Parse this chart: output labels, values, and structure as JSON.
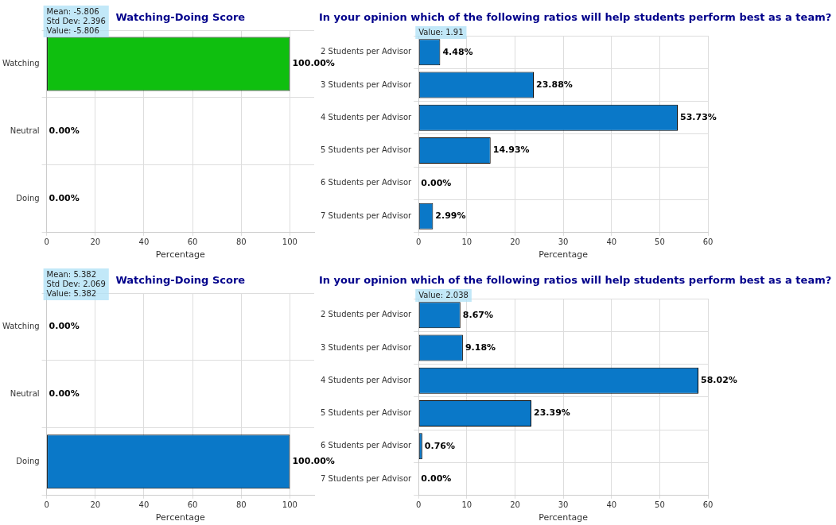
{
  "chart_data": [
    {
      "type": "bar",
      "orientation": "horizontal",
      "title": "Watching-Doing Score",
      "xlabel": "Percentage",
      "categories": [
        "Watching",
        "Neutral",
        "Doing"
      ],
      "values": [
        100,
        0,
        0
      ],
      "color": "#0fbf0f",
      "value_labels": [
        "100.00%",
        "0.00%",
        "0.00%"
      ],
      "xlim": [
        0,
        110
      ],
      "xticks": [
        0,
        20,
        40,
        60,
        80,
        100
      ],
      "grid": true,
      "annotations": [
        "Mean: -5.806\nStd Dev: 2.396\nValue: -5.806"
      ]
    },
    {
      "type": "bar",
      "orientation": "horizontal",
      "title": "In your opinion which of the following ratios will help students perform best as a team?",
      "xlabel": "Percentage",
      "categories": [
        "2 Students per Advisor",
        "3 Students per Advisor",
        "4 Students per Advisor",
        "5 Students per Advisor",
        "6 Students per Advisor",
        "7 Students per Advisor"
      ],
      "values": [
        4.48,
        23.88,
        53.73,
        14.93,
        0,
        2.99
      ],
      "color": "#0a78c8",
      "value_labels": [
        "4.48%",
        "23.88%",
        "53.73%",
        "14.93%",
        "0.00%",
        "2.99%"
      ],
      "xlim": [
        0,
        60
      ],
      "xticks": [
        0,
        10,
        20,
        30,
        40,
        50,
        60
      ],
      "grid": true,
      "annotations": [
        "Value: 1.91"
      ]
    },
    {
      "type": "bar",
      "orientation": "horizontal",
      "title": "Watching-Doing Score",
      "xlabel": "Percentage",
      "categories": [
        "Watching",
        "Neutral",
        "Doing"
      ],
      "values": [
        0,
        0,
        100
      ],
      "color": "#0a78c8",
      "value_labels": [
        "0.00%",
        "0.00%",
        "100.00%"
      ],
      "xlim": [
        0,
        110
      ],
      "xticks": [
        0,
        20,
        40,
        60,
        80,
        100
      ],
      "grid": true,
      "annotations": [
        "Mean: 5.382\nStd Dev: 2.069\nValue: 5.382"
      ]
    },
    {
      "type": "bar",
      "orientation": "horizontal",
      "title": "In your opinion which of the following ratios will help students perform best as a team?",
      "xlabel": "Percentage",
      "categories": [
        "2 Students per Advisor",
        "3 Students per Advisor",
        "4 Students per Advisor",
        "5 Students per Advisor",
        "6 Students per Advisor",
        "7 Students per Advisor"
      ],
      "values": [
        8.67,
        9.18,
        58.02,
        23.39,
        0.76,
        0
      ],
      "color": "#0a78c8",
      "value_labels": [
        "8.67%",
        "9.18%",
        "58.02%",
        "23.39%",
        "0.76%",
        "0.00%"
      ],
      "xlim": [
        0,
        60
      ],
      "xticks": [
        0,
        10,
        20,
        30,
        40,
        50,
        60
      ],
      "grid": true,
      "annotations": [
        "Value: 2.038"
      ]
    }
  ]
}
